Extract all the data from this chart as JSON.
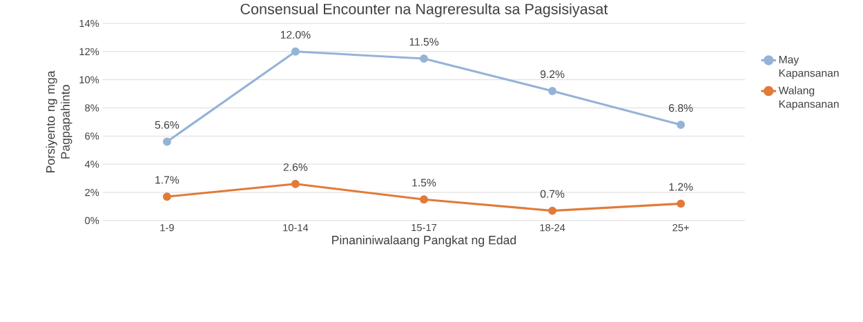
{
  "chart_data": {
    "type": "line",
    "title": "Consensual Encounter na Nagreresulta sa Pagsisiyasat",
    "xlabel": "Pinaniniwalaang Pangkat ng Edad",
    "ylabel": "Porsiyento ng mga Pagpapahinto",
    "categories": [
      "1-9",
      "10-14",
      "15-17",
      "18-24",
      "25+"
    ],
    "series": [
      {
        "name": "May Kapansanan",
        "color": "#95b3d7",
        "values": [
          5.6,
          12.0,
          11.5,
          9.2,
          6.8
        ],
        "value_labels": [
          "5.6%",
          "12.0%",
          "11.5%",
          "9.2%",
          "6.8%"
        ]
      },
      {
        "name": "Walang Kapansanan",
        "color": "#e07b39",
        "values": [
          1.7,
          2.6,
          1.5,
          0.7,
          1.2
        ],
        "value_labels": [
          "1.7%",
          "2.6%",
          "1.5%",
          "0.7%",
          "1.2%"
        ]
      }
    ],
    "ylim": [
      0,
      14
    ],
    "yticks": [
      {
        "value": 0,
        "label": "0%"
      },
      {
        "value": 2,
        "label": "2%"
      },
      {
        "value": 4,
        "label": "4%"
      },
      {
        "value": 6,
        "label": "6%"
      },
      {
        "value": 8,
        "label": "8%"
      },
      {
        "value": 10,
        "label": "10%"
      },
      {
        "value": 12,
        "label": "12%"
      },
      {
        "value": 14,
        "label": "14%"
      }
    ],
    "grid": "y",
    "legend": "right",
    "marker": "circle",
    "line_style": "solid"
  }
}
